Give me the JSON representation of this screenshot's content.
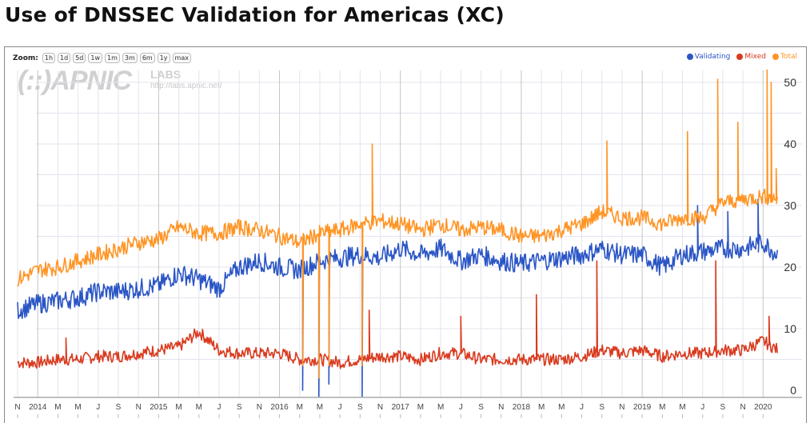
{
  "page": {
    "title": "Use of DNSSEC Validation for Americas (XC)"
  },
  "toolbar": {
    "zoom_label": "Zoom:",
    "zoom_buttons": [
      "1h",
      "1d",
      "5d",
      "1w",
      "1m",
      "3m",
      "6m",
      "1y",
      "max"
    ]
  },
  "watermark": {
    "logo": "(::)APNIC",
    "labs": "LABS",
    "url": "http://labs.apnic.net/"
  },
  "colors": {
    "validating": "#2a55c5",
    "mixed": "#d93a1e",
    "total": "#ff9424",
    "grid": "#e3e3ee",
    "major_grid": "#c4c4c4"
  },
  "chart_data": {
    "type": "line",
    "title": "Use of DNSSEC Validation for Americas (XC)",
    "xlabel": "",
    "ylabel": "",
    "ylim": [
      0,
      52
    ],
    "y_ticks": [
      0,
      10,
      20,
      30,
      40,
      50
    ],
    "y_axis_position": "right",
    "grid": true,
    "legend_position": "top-right",
    "x_range": [
      "2013-11",
      "2020-04"
    ],
    "x_tick_labels": [
      "N",
      "2014",
      "M",
      "M",
      "J",
      "S",
      "N",
      "2015",
      "M",
      "M",
      "J",
      "S",
      "N",
      "2016",
      "M",
      "M",
      "J",
      "S",
      "N",
      "2017",
      "M",
      "M",
      "J",
      "S",
      "N",
      "2018",
      "M",
      "M",
      "J",
      "S",
      "N",
      "2019",
      "M",
      "M",
      "J",
      "S",
      "N",
      "2020"
    ],
    "x_tick_months": [
      0,
      2,
      4,
      6,
      8,
      10,
      12,
      14,
      16,
      18,
      20,
      22,
      24,
      26,
      28,
      30,
      32,
      34,
      36,
      38,
      40,
      42,
      44,
      46,
      48,
      50,
      52,
      54,
      56,
      58,
      60,
      62,
      64,
      66,
      68,
      70,
      72,
      74
    ],
    "x_unit": "months since 2013-11",
    "series": [
      {
        "name": "Validating",
        "color": "#2a55c5",
        "x": [
          0,
          2,
          4,
          6,
          8,
          10,
          12,
          14,
          16,
          18,
          20,
          22,
          24,
          26,
          28,
          30,
          32,
          34,
          36,
          38,
          40,
          42,
          44,
          46,
          48,
          50,
          52,
          54,
          56,
          58,
          60,
          62,
          64,
          66,
          68,
          70,
          72,
          74,
          75.5
        ],
        "values": [
          13,
          14,
          14.5,
          15,
          16,
          16,
          16.5,
          17,
          19,
          18,
          16.5,
          20,
          21,
          20,
          19.5,
          21,
          21.5,
          22,
          21.5,
          23,
          22,
          23,
          21,
          22,
          21,
          20.5,
          21,
          21.5,
          22,
          23,
          22,
          22,
          20,
          22,
          22.5,
          23,
          23,
          24,
          22
        ],
        "spikes": [
          {
            "x": 28.3,
            "value": 0
          },
          {
            "x": 29.9,
            "value": -1
          },
          {
            "x": 30.9,
            "value": 1
          },
          {
            "x": 34.2,
            "value": -1
          },
          {
            "x": 67.5,
            "value": 30
          },
          {
            "x": 70.5,
            "value": 29
          },
          {
            "x": 73.5,
            "value": 31
          }
        ]
      },
      {
        "name": "Mixed",
        "color": "#d93a1e",
        "x": [
          0,
          2,
          4,
          6,
          8,
          10,
          12,
          14,
          16,
          18,
          20,
          22,
          24,
          26,
          28,
          30,
          32,
          34,
          36,
          38,
          40,
          42,
          44,
          46,
          48,
          50,
          52,
          54,
          56,
          58,
          60,
          62,
          64,
          66,
          68,
          70,
          72,
          74,
          75.5
        ],
        "values": [
          4.5,
          4.5,
          5,
          5,
          5.5,
          5.5,
          6,
          6.5,
          7,
          9.5,
          6.5,
          6,
          6,
          6,
          5,
          5,
          4.5,
          5,
          5.5,
          5.5,
          5,
          6,
          6,
          5,
          5,
          5,
          5,
          5,
          5.5,
          6.5,
          6,
          6.5,
          5.5,
          6,
          6,
          6.5,
          6.5,
          8,
          6.5
        ],
        "spikes": [
          {
            "x": 4.8,
            "value": 8.5
          },
          {
            "x": 34.9,
            "value": 13
          },
          {
            "x": 44,
            "value": 12
          },
          {
            "x": 51.5,
            "value": 15.5
          },
          {
            "x": 57.5,
            "value": 21
          },
          {
            "x": 69.3,
            "value": 21
          },
          {
            "x": 74.6,
            "value": 12
          }
        ]
      },
      {
        "name": "Total",
        "color": "#ff9424",
        "x": [
          0,
          2,
          4,
          6,
          8,
          10,
          12,
          14,
          16,
          18,
          20,
          22,
          24,
          26,
          28,
          30,
          32,
          34,
          36,
          38,
          40,
          42,
          44,
          46,
          48,
          50,
          52,
          54,
          56,
          58,
          60,
          62,
          64,
          66,
          68,
          70,
          72,
          74,
          75.5
        ],
        "values": [
          18,
          19.5,
          20,
          21,
          22,
          23,
          24,
          24.5,
          26.5,
          25.5,
          25.5,
          26.5,
          26,
          25,
          24,
          25.5,
          26,
          27,
          27.5,
          27,
          26,
          27,
          26,
          26.5,
          26,
          25,
          25,
          26,
          27,
          29,
          28,
          28,
          27,
          28,
          28,
          30.5,
          31,
          31.5,
          31
        ],
        "spikes": [
          {
            "x": 28.3,
            "value": 4
          },
          {
            "x": 29.9,
            "value": 2
          },
          {
            "x": 30.9,
            "value": 4
          },
          {
            "x": 34.2,
            "value": 4
          },
          {
            "x": 35.2,
            "value": 40
          },
          {
            "x": 58.5,
            "value": 40.5
          },
          {
            "x": 66.5,
            "value": 42
          },
          {
            "x": 69.5,
            "value": 50.5
          },
          {
            "x": 71.5,
            "value": 43.5
          },
          {
            "x": 74.4,
            "value": 52
          },
          {
            "x": 74.8,
            "value": 50
          },
          {
            "x": 75.3,
            "value": 36
          }
        ]
      }
    ]
  }
}
